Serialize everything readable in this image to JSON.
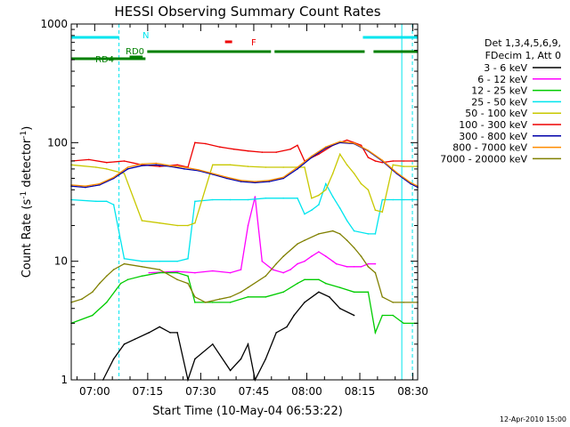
{
  "chart_data": {
    "type": "line",
    "title": "HESSI Observing Summary Count Rates",
    "xlabel": "Start Time (10-May-04 06:53:22)",
    "ylabel": "Count Rate (s⁻¹ detector⁻¹)",
    "ylabel_parts": {
      "main": "Count Rate (s",
      "sup1": "-1",
      "mid": " detector",
      "sup2": "-1",
      "end": ")"
    },
    "yscale": "log",
    "ylim": [
      1,
      1000
    ],
    "y_ticks": [
      1,
      10,
      100,
      1000
    ],
    "y_tick_labels": [
      "1",
      "10",
      "100",
      "1000"
    ],
    "x_axis_unit": "minutes after 06:53:22",
    "xlim": [
      0,
      98
    ],
    "x_ticks": [
      6.63,
      21.63,
      36.63,
      51.63,
      66.63,
      81.63,
      96.63
    ],
    "x_tick_labels": [
      "07:00",
      "07:15",
      "07:30",
      "07:45",
      "08:00",
      "08:15",
      "08:30"
    ],
    "legend": {
      "placement": "right",
      "header": [
        "Det 1,3,4,5,6,9,",
        "FDecim 1, Att 0"
      ],
      "entries": [
        {
          "label": "3 - 6 keV",
          "color": "#000000"
        },
        {
          "label": "6 - 12 keV",
          "color": "#ff00ff"
        },
        {
          "label": "12 - 25 keV",
          "color": "#00cc00"
        },
        {
          "label": "25 - 50 keV",
          "color": "#00e5ee"
        },
        {
          "label": "50 - 100 keV",
          "color": "#c8c800"
        },
        {
          "label": "100 - 300 keV",
          "color": "#ee0000"
        },
        {
          "label": "300 - 800 keV",
          "color": "#0000aa"
        },
        {
          "label": "800 - 7000 keV",
          "color": "#ff8c00"
        },
        {
          "label": "7000 - 20000 keV",
          "color": "#808000"
        }
      ]
    },
    "night_boundaries_min": [
      0,
      93.5
    ],
    "saa_boundaries_min": [],
    "series": [
      {
        "name": "3 - 6 keV",
        "color": "#000000",
        "x": [
          0,
          8,
          9,
          12,
          15,
          18,
          22,
          25,
          28,
          30,
          33,
          35,
          40,
          45,
          48,
          50,
          52,
          55,
          58,
          61,
          63,
          66,
          70,
          73,
          76,
          80,
          84,
          86
        ],
        "y": [
          null,
          null,
          1.0,
          1.5,
          2.0,
          2.2,
          2.5,
          2.8,
          2.5,
          2.5,
          1.0,
          1.5,
          2.0,
          1.2,
          1.5,
          2.0,
          1.0,
          1.5,
          2.5,
          2.8,
          3.5,
          4.5,
          5.5,
          5.0,
          4.0,
          3.5,
          null,
          null
        ]
      },
      {
        "name": "6 - 12 keV",
        "color": "#ff00ff",
        "x": [
          22,
          30,
          35,
          40,
          45,
          48,
          50,
          52,
          54,
          57,
          60,
          62,
          64,
          66,
          68,
          70,
          72,
          74,
          75,
          78,
          80,
          82,
          84,
          86
        ],
        "y": [
          8,
          8.2,
          8.0,
          8.3,
          8.0,
          8.5,
          20,
          35,
          10,
          8.5,
          8.0,
          8.5,
          9.5,
          10.0,
          11.0,
          12.0,
          11.0,
          10.0,
          9.5,
          9.0,
          9.0,
          9.0,
          9.5,
          9.5
        ]
      },
      {
        "name": "12 - 25 keV",
        "color": "#00cc00",
        "x": [
          0,
          6,
          10,
          14,
          16,
          20,
          25,
          30,
          33,
          35,
          40,
          45,
          50,
          55,
          60,
          64,
          66,
          70,
          72,
          76,
          80,
          84,
          86,
          88,
          91,
          94,
          98
        ],
        "y": [
          3.0,
          3.5,
          4.5,
          6.5,
          7.0,
          7.5,
          8.0,
          8.0,
          7.5,
          4.5,
          4.5,
          4.5,
          5.0,
          5.0,
          5.5,
          6.5,
          7.0,
          7.0,
          6.5,
          6.0,
          5.5,
          5.5,
          2.5,
          3.5,
          3.5,
          3.0,
          3.0
        ]
      },
      {
        "name": "25 - 50 keV",
        "color": "#00e5ee",
        "x": [
          0,
          7,
          10,
          12,
          15,
          20,
          25,
          30,
          33,
          35,
          40,
          45,
          50,
          55,
          60,
          64,
          66,
          68,
          70,
          72,
          74,
          76,
          78,
          80,
          84,
          86,
          88,
          91,
          94,
          98
        ],
        "y": [
          33,
          32,
          32,
          30,
          10.5,
          10.0,
          10.0,
          10.0,
          10.5,
          32,
          33,
          33,
          33,
          34,
          34,
          34,
          25,
          27,
          30,
          45,
          35,
          28,
          22,
          18,
          17,
          17,
          33,
          33,
          33,
          33
        ]
      },
      {
        "name": "50 - 100 keV",
        "color": "#c8c800",
        "x": [
          0,
          7,
          10,
          15,
          20,
          25,
          30,
          33,
          35,
          40,
          45,
          50,
          55,
          60,
          64,
          66,
          68,
          70,
          72,
          74,
          76,
          78,
          80,
          82,
          84,
          86,
          88,
          91,
          94,
          98
        ],
        "y": [
          65,
          62,
          60,
          55,
          22,
          21,
          20,
          20,
          21,
          65,
          65,
          63,
          62,
          62,
          62,
          62,
          34,
          36,
          40,
          55,
          80,
          65,
          55,
          45,
          40,
          27,
          26,
          65,
          63,
          63
        ]
      },
      {
        "name": "100 - 300 keV",
        "color": "#ee0000",
        "x": [
          0,
          5,
          10,
          15,
          20,
          25,
          30,
          33,
          35,
          38,
          42,
          46,
          50,
          54,
          58,
          62,
          64,
          66,
          70,
          74,
          76,
          78,
          80,
          82,
          84,
          86,
          88,
          91,
          94,
          98
        ],
        "y": [
          70,
          72,
          68,
          70,
          65,
          63,
          65,
          62,
          100,
          98,
          92,
          88,
          85,
          83,
          83,
          88,
          95,
          70,
          80,
          95,
          100,
          105,
          100,
          95,
          75,
          70,
          68,
          70,
          70,
          70
        ]
      },
      {
        "name": "300 - 800 keV",
        "color": "#0000aa",
        "x": [
          0,
          4,
          8,
          12,
          16,
          20,
          24,
          28,
          32,
          36,
          40,
          44,
          48,
          52,
          56,
          60,
          64,
          68,
          72,
          76,
          80,
          84,
          88,
          92,
          96,
          98
        ],
        "y": [
          43,
          42,
          44,
          50,
          60,
          64,
          65,
          63,
          60,
          58,
          54,
          50,
          47,
          46,
          47,
          50,
          60,
          75,
          90,
          100,
          98,
          85,
          70,
          55,
          45,
          42
        ]
      },
      {
        "name": "800 - 7000 keV",
        "color": "#ff8c00",
        "x": [
          0,
          4,
          8,
          12,
          16,
          20,
          24,
          28,
          32,
          36,
          40,
          44,
          48,
          52,
          56,
          60,
          64,
          68,
          72,
          76,
          80,
          84,
          88,
          92,
          96,
          98
        ],
        "y": [
          44,
          43,
          45,
          51,
          62,
          66,
          67,
          64,
          62,
          59,
          55,
          51,
          48,
          47,
          48,
          51,
          62,
          77,
          92,
          102,
          99,
          86,
          71,
          56,
          46,
          43
        ]
      },
      {
        "name": "7000 - 20000 keV",
        "color": "#808000",
        "x": [
          0,
          3,
          6,
          8,
          10,
          12,
          15,
          20,
          25,
          30,
          33,
          35,
          38,
          42,
          45,
          48,
          50,
          55,
          58,
          60,
          64,
          66,
          70,
          74,
          76,
          78,
          80,
          82,
          84,
          86,
          88,
          91,
          94,
          98
        ],
        "y": [
          4.5,
          4.8,
          5.5,
          6.5,
          7.5,
          8.5,
          9.5,
          9.0,
          8.5,
          7.0,
          6.5,
          5.0,
          4.5,
          4.8,
          5.0,
          5.5,
          6.0,
          7.5,
          9.5,
          11.0,
          14.0,
          15.0,
          17.0,
          18.0,
          17.0,
          15.0,
          13.0,
          11.0,
          9.0,
          8.0,
          5.0,
          4.5,
          4.5,
          4.5
        ]
      }
    ]
  },
  "status_bars": [
    {
      "label": "N",
      "color": "#00e5ee",
      "segments": [
        [
          0,
          13.5
        ],
        [
          82.5,
          98
        ]
      ]
    },
    {
      "label": "F",
      "color": "#ee0000",
      "segments": [
        [
          43.5,
          45.5
        ]
      ]
    },
    {
      "label": "RD0",
      "color": "#008000",
      "segments": [
        [
          16.5,
          20.2
        ]
      ]
    },
    {
      "label": "RD4",
      "color": "#008000",
      "segments": [
        [
          0,
          21.0
        ]
      ]
    },
    {
      "label": "",
      "color": "#008000",
      "segments": [
        [
          21.5,
          56.5
        ],
        [
          57.5,
          83.0
        ],
        [
          85.5,
          98
        ]
      ]
    }
  ],
  "footer": {
    "date": "12-Apr-2010 15:00"
  }
}
